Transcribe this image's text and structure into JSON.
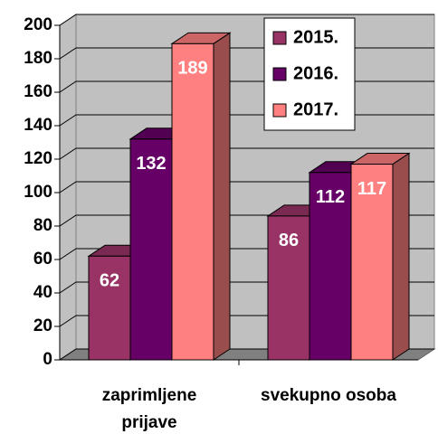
{
  "chart_data": {
    "type": "bar3d",
    "categories": [
      "zaprimljene prijave",
      "svekupno osoba"
    ],
    "series": [
      {
        "name": "2015.",
        "color": "#993366",
        "values": [
          62,
          86
        ]
      },
      {
        "name": "2016.",
        "color": "#660066",
        "values": [
          132,
          112
        ]
      },
      {
        "name": "2017.",
        "color": "#ff8080",
        "values": [
          189,
          117
        ]
      }
    ],
    "ylim": [
      0,
      200
    ],
    "yticks": [
      0,
      20,
      40,
      60,
      80,
      100,
      120,
      140,
      160,
      180,
      200
    ],
    "grid": true,
    "legend": "upper right"
  }
}
